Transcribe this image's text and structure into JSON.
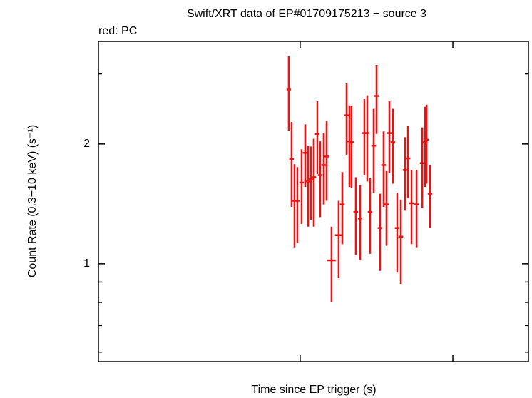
{
  "chart_data": {
    "type": "errorbar",
    "title": "Swift/XRT data of EP#01709175213 − source 3",
    "x_label": "Time since EP trigger (s)",
    "y_label": "Count Rate (0.3−10 keV) (s⁻¹)",
    "xscale": "log",
    "yscale": "log",
    "xlim": [
      477,
      312600
    ],
    "ylim": [
      0.568,
      3.62
    ],
    "xticks": [
      10000,
      100000
    ],
    "yticks": [
      1,
      2
    ],
    "yminorticks": [
      0.6,
      0.7,
      0.8,
      0.9,
      3
    ],
    "series": [
      {
        "name": "red: PC",
        "color": "#ee1111",
        "x": [
          8420,
          8790,
          9180,
          9580,
          10220,
          10780,
          11260,
          11750,
          12270,
          12950,
          13520,
          14260,
          14890,
          16050,
          17870,
          18860,
          20130,
          21010,
          21700,
          23140,
          24710,
          26330,
          27500,
          28710,
          30290,
          31620,
          33360,
          35200,
          36750,
          38370,
          40500,
          43200,
          45600,
          48700,
          50800,
          53600,
          57800,
          63000,
          65800,
          67200,
          70900
        ],
        "xerr": [
          290,
          310,
          320,
          340,
          360,
          380,
          390,
          410,
          430,
          450,
          470,
          500,
          520,
          1040,
          970,
          660,
          700,
          740,
          760,
          810,
          860,
          920,
          960,
          1000,
          1060,
          1110,
          1170,
          1230,
          1290,
          1340,
          1420,
          1510,
          1600,
          1700,
          1780,
          1880,
          2020,
          2210,
          2300,
          2350,
          2480
        ],
        "values": [
          2.74,
          1.83,
          1.44,
          1.44,
          1.6,
          1.9,
          1.61,
          1.63,
          1.65,
          2.12,
          1.67,
          1.77,
          1.86,
          1.02,
          1.18,
          1.41,
          2.36,
          2.03,
          2.02,
          1.35,
          1.3,
          2.13,
          2.13,
          1.35,
          1.98,
          2.64,
          1.23,
          1.77,
          1.41,
          2.13,
          2.02,
          1.23,
          1.17,
          1.72,
          1.84,
          1.42,
          1.41,
          1.79,
          2.02,
          2.05,
          1.5
        ],
        "yerr": [
          0.58,
          0.44,
          0.34,
          0.31,
          0.34,
          0.34,
          0.37,
          0.34,
          0.41,
          0.44,
          0.36,
          0.36,
          0.42,
          0.22,
          0.26,
          0.29,
          0.48,
          0.47,
          0.47,
          0.3,
          0.28,
          0.46,
          0.52,
          0.29,
          0.47,
          0.52,
          0.27,
          0.38,
          0.3,
          0.44,
          0.43,
          0.28,
          0.28,
          0.36,
          0.38,
          0.3,
          0.31,
          0.41,
          0.46,
          0.46,
          0.27
        ]
      }
    ]
  }
}
